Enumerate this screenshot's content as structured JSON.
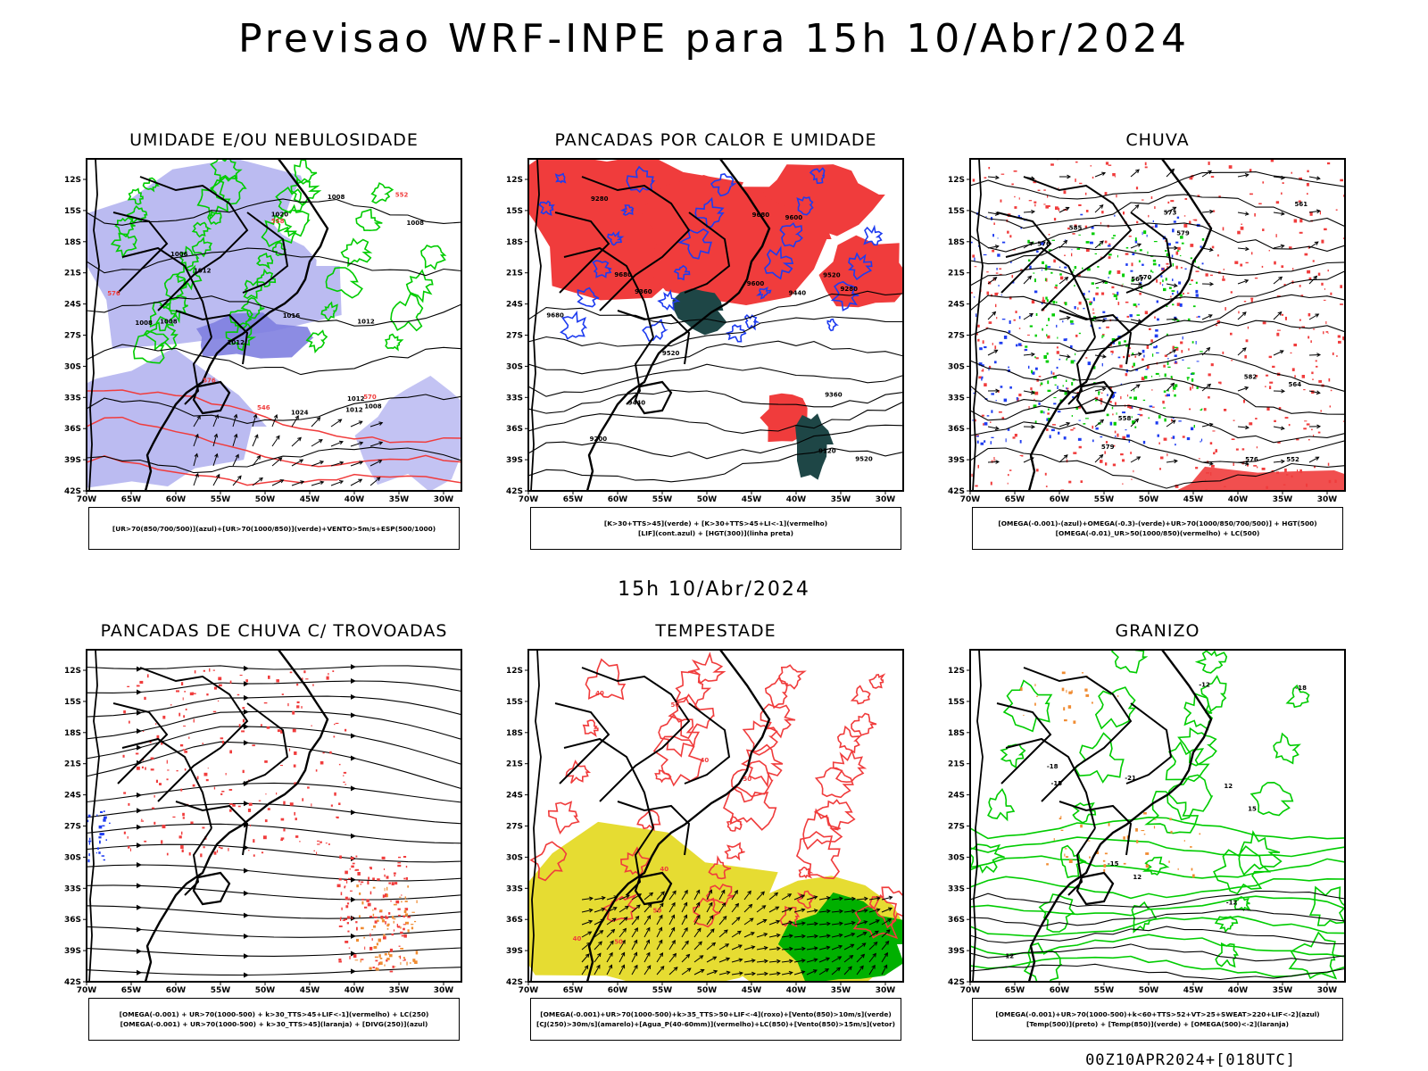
{
  "title": "Previsao WRF-INPE  para 15h 10/Abr/2024",
  "subtitle": "15h 10/Abr/2024",
  "footer": "00Z10APR2024+[018UTC]",
  "lat_labels": [
    "12S",
    "15S",
    "18S",
    "21S",
    "24S",
    "27S",
    "30S",
    "33S",
    "36S",
    "39S",
    "42S"
  ],
  "lon_labels": [
    "70W",
    "65W",
    "60W",
    "55W",
    "50W",
    "45W",
    "40W",
    "35W",
    "30W"
  ],
  "colors": {
    "humid_blue": "#b4b4f0",
    "humid_blue_dark": "#8080e0",
    "green": "#00cc00",
    "red": "#f03c3c",
    "dark_teal": "#1e4646",
    "yellow": "#e6dc32",
    "orange": "#f08c32",
    "blue": "#1e3cf0",
    "black": "#000000"
  },
  "panels": [
    {
      "key": "umidade",
      "title": "UMIDADE E/OU NEBULOSIDADE",
      "legend": [
        "[UR>70(850/700/500)](azul)+[UR>70(1000/850)](verde)+VENTO>5m/s+ESP(500/1000)"
      ],
      "contour_labels": [
        "1008",
        "1006",
        "1008",
        "1008",
        "1008",
        "1012",
        "1012",
        "1016",
        "1020",
        "1024",
        "1012",
        "1012",
        "1008",
        "1012",
        "576",
        "570",
        "576",
        "558",
        "552",
        "546"
      ]
    },
    {
      "key": "pancadas-calor",
      "title": "PANCADAS POR CALOR E UMIDADE",
      "legend": [
        "[K>30+TTS>45](verde) + [K>30+TTS>45+LI<-1](vermelho)",
        "[LIF](cont.azul) + [HGT(300)](linha preta)"
      ],
      "contour_labels": [
        "9680",
        "9680",
        "9680",
        "9600",
        "9600",
        "9520",
        "9520",
        "9440",
        "9520",
        "9440",
        "9360",
        "9360",
        "9280",
        "9280",
        "9200",
        "9120"
      ]
    },
    {
      "key": "chuva",
      "title": "CHUVA",
      "legend": [
        "[OMEGA(-0.001)-(azul)+OMEGA(-0.3)-(verde)+UR>70(1000/850/700/500)] + HGT(500)",
        "[OMEGA(-0.01)_UR>50(1000/850)(vermelho) + LC(500)"
      ],
      "contour_labels": [
        "585",
        "582",
        "579",
        "576",
        "573",
        "567",
        "564",
        "561",
        "558",
        "552",
        "579",
        "576",
        "570"
      ]
    },
    {
      "key": "pancadas-trovoadas",
      "title": "PANCADAS DE CHUVA C/ TROVOADAS",
      "legend": [
        "[OMEGA(-0.001) + UR>70(1000-500) + k>30_TTS>45+LIF<-1](vermelho) + LC(250)",
        "[OMEGA(-0.001) + UR>70(1000-500) + k>30_TTS>45](laranja) + [DIVG(250)](azul)"
      ],
      "contour_labels": []
    },
    {
      "key": "tempestade",
      "title": "TEMPESTADE",
      "legend": [
        "[OMEGA(-0.001)+UR>70(1000-500)+k>35_TTS>50+LIF<-4](roxo)+[Vento(850)>10m/s](verde)",
        "[CJ(250)>30m/s](amarelo)+[Agua_P(40-60mm)](vermelho)+LC(850)+[Vento(850)>15m/s](vetor)"
      ],
      "contour_labels": [
        "50",
        "50",
        "40",
        "50",
        "40",
        "50",
        "40",
        "40"
      ]
    },
    {
      "key": "granizo",
      "title": "GRANIZO",
      "legend": [
        "[OMEGA(-0.001)+UR>70(1000-500)+k<60+TTS>52+VT>25+SWEAT>220+LIF<-2](azul)",
        "[Temp(500)](preto) + [Temp(850)](verde) + [OMEGA(500)<-2](laranja)"
      ],
      "contour_labels": [
        "-15",
        "-18",
        "-21",
        "-12",
        "-18",
        "-15",
        "-12",
        "12",
        "12",
        "12",
        "15"
      ]
    }
  ]
}
